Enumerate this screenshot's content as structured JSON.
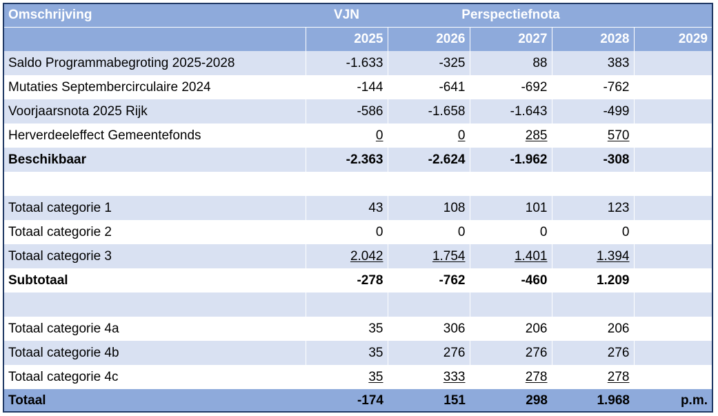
{
  "header": {
    "col0": "Omschrijving",
    "vjn": "VJN",
    "perspectiefnota": "Perspectiefnota",
    "years": [
      "2025",
      "2026",
      "2027",
      "2028",
      "2029"
    ]
  },
  "rows": [
    {
      "label": "Saldo Programmabegroting 2025-2028",
      "values": [
        "-1.633",
        "-325",
        "88",
        "383",
        ""
      ]
    },
    {
      "label": "Mutaties Septembercirculaire 2024",
      "values": [
        "-144",
        "-641",
        "-692",
        "-762",
        ""
      ]
    },
    {
      "label": "Voorjaarsnota 2025 Rijk",
      "values": [
        "-586",
        "-1.658",
        "-1.643",
        "-499",
        ""
      ]
    },
    {
      "label": "Herverdeeleffect Gemeentefonds",
      "values": [
        "0",
        "0",
        "285",
        "570",
        ""
      ]
    },
    {
      "label": "Beschikbaar",
      "values": [
        "-2.363",
        "-2.624",
        "-1.962",
        "-308",
        ""
      ]
    },
    {
      "label": "",
      "values": [
        "",
        "",
        "",
        "",
        ""
      ]
    },
    {
      "label": "Totaal categorie 1",
      "values": [
        "43",
        "108",
        "101",
        "123",
        ""
      ]
    },
    {
      "label": "Totaal categorie 2",
      "values": [
        "0",
        "0",
        "0",
        "0",
        ""
      ]
    },
    {
      "label": "Totaal categorie 3",
      "values": [
        "2.042",
        "1.754",
        "1.401",
        "1.394",
        ""
      ]
    },
    {
      "label": "Subtotaal",
      "values": [
        "-278",
        "-762",
        "-460",
        "1.209",
        ""
      ]
    },
    {
      "label": "",
      "values": [
        "",
        "",
        "",
        "",
        ""
      ]
    },
    {
      "label": "Totaal categorie 4a",
      "values": [
        "35",
        "306",
        "206",
        "206",
        ""
      ]
    },
    {
      "label": "Totaal categorie 4b",
      "values": [
        "35",
        "276",
        "276",
        "276",
        ""
      ]
    },
    {
      "label": "Totaal categorie 4c",
      "values": [
        "35",
        "333",
        "278",
        "278",
        ""
      ]
    },
    {
      "label": "Totaal",
      "values": [
        "-174",
        "151",
        "298",
        "1.968",
        "p.m."
      ]
    }
  ],
  "colors": {
    "header_bg": "#8eaadb",
    "band_bg": "#d9e1f2",
    "border": "#1f3864"
  }
}
